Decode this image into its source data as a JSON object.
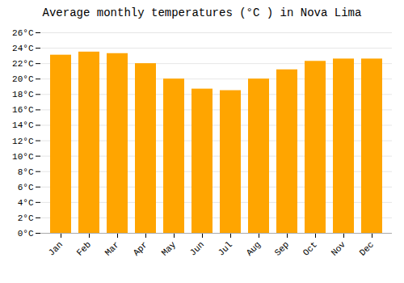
{
  "chart_data": {
    "type": "bar",
    "title": "Average monthly temperatures (°C ) in Nova Lima",
    "categories": [
      "Jan",
      "Feb",
      "Mar",
      "Apr",
      "May",
      "Jun",
      "Jul",
      "Aug",
      "Sep",
      "Oct",
      "Nov",
      "Dec"
    ],
    "values": [
      23.1,
      23.5,
      23.3,
      22.0,
      20.0,
      18.7,
      18.5,
      20.0,
      21.2,
      22.3,
      22.6,
      22.6
    ],
    "color": "#FFA500",
    "ylim": [
      0,
      26
    ],
    "yticks": [
      {
        "value": 0,
        "label": "0°C"
      },
      {
        "value": 2,
        "label": "2°C"
      },
      {
        "value": 4,
        "label": "4°C"
      },
      {
        "value": 6,
        "label": "6°C"
      },
      {
        "value": 8,
        "label": "8°C"
      },
      {
        "value": 10,
        "label": "10°C"
      },
      {
        "value": 12,
        "label": "12°C"
      },
      {
        "value": 14,
        "label": "14°C"
      },
      {
        "value": 16,
        "label": "16°C"
      },
      {
        "value": 18,
        "label": "18°C"
      },
      {
        "value": 20,
        "label": "20°C"
      },
      {
        "value": 22,
        "label": "22°C"
      },
      {
        "value": 24,
        "label": "24°C"
      },
      {
        "value": 26,
        "label": "26°C"
      }
    ],
    "grid": true
  }
}
